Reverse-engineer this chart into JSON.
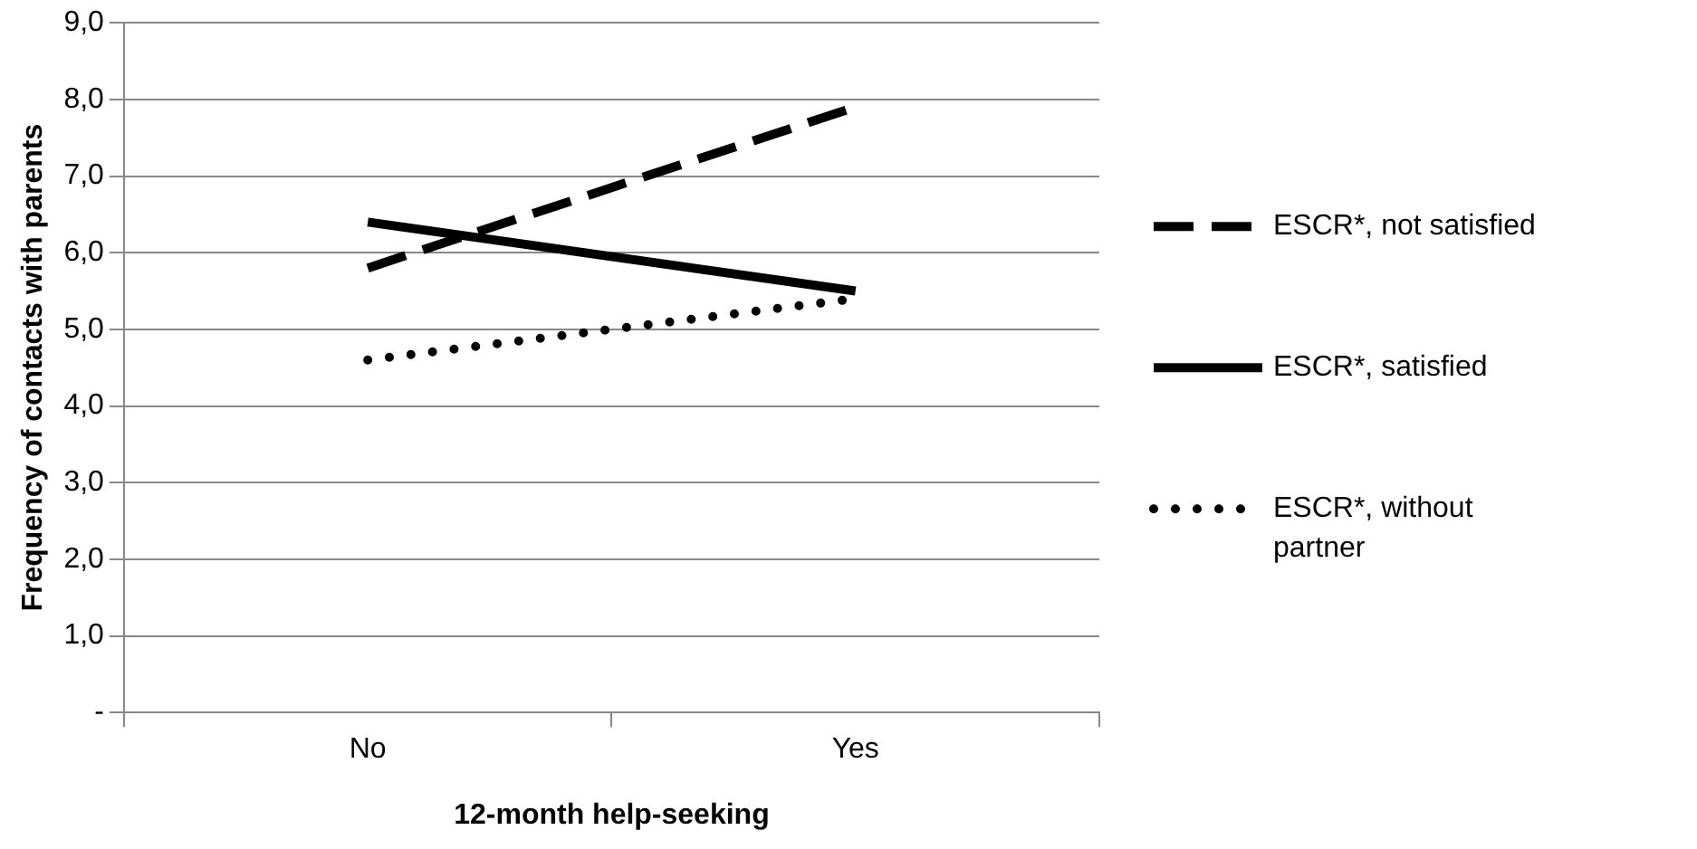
{
  "chart_data": {
    "type": "line",
    "xlabel": "12-month help-seeking",
    "ylabel": "Frequency of contacts with parents",
    "categories": [
      "No",
      "Yes"
    ],
    "series": [
      {
        "name": "ESCR*, not satisfied",
        "color": "#000000",
        "values": [
          5.8,
          7.9
        ],
        "line_style": "dashed"
      },
      {
        "name": "ESCR*, satisfied",
        "color": "#000000",
        "values": [
          6.4,
          5.5
        ],
        "line_style": "solid"
      },
      {
        "name": "ESCR*, without partner",
        "color": "#000000",
        "values": [
          4.6,
          5.4
        ],
        "line_style": "dotted"
      }
    ],
    "ylim": [
      0,
      9
    ],
    "yticks": [
      {
        "value": 0,
        "label": "-"
      },
      {
        "value": 1,
        "label": "1,0"
      },
      {
        "value": 2,
        "label": "2,0"
      },
      {
        "value": 3,
        "label": "3,0"
      },
      {
        "value": 4,
        "label": "4,0"
      },
      {
        "value": 5,
        "label": "5,0"
      },
      {
        "value": 6,
        "label": "6,0"
      },
      {
        "value": 7,
        "label": "7,0"
      },
      {
        "value": 8,
        "label": "8,0"
      },
      {
        "value": 9,
        "label": "9,0"
      }
    ],
    "grid": "y",
    "legend": "right",
    "marker": "none"
  }
}
